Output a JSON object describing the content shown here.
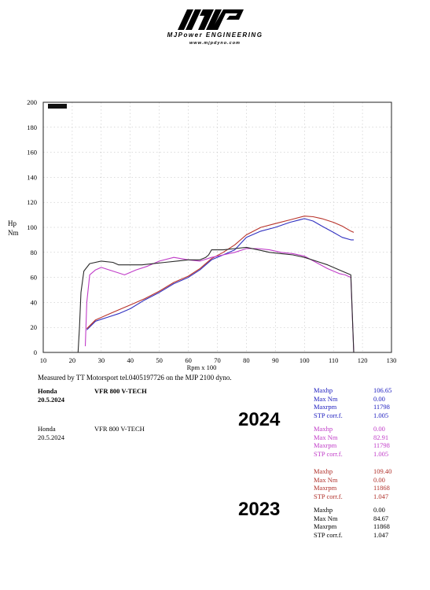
{
  "brand": {
    "name": "MJPower ENGINEERING",
    "url": "www.mjpdyno.com"
  },
  "chart_data": {
    "type": "line",
    "title": "",
    "xlabel": "Rpm x 100",
    "ylabel": "Hp\nNm",
    "ylabel_lines": [
      "Hp",
      "Nm"
    ],
    "xlim": [
      10,
      130
    ],
    "ylim": [
      0,
      200
    ],
    "x_ticks": [
      10,
      20,
      30,
      40,
      50,
      60,
      70,
      80,
      90,
      100,
      110,
      120,
      130
    ],
    "y_ticks": [
      0,
      20,
      40,
      60,
      80,
      100,
      120,
      140,
      160,
      180,
      200
    ],
    "grid": true,
    "series": [
      {
        "color": "#3030c0",
        "x": [
          25,
          28,
          32,
          36,
          40,
          45,
          50,
          55,
          60,
          64,
          66,
          68,
          72,
          76,
          80,
          85,
          90,
          95,
          100,
          103,
          106,
          110,
          113,
          116,
          117
        ],
        "y": [
          18,
          25,
          28,
          31,
          35,
          42,
          48,
          55,
          60,
          66,
          70,
          74,
          78,
          82,
          92,
          97,
          100,
          104,
          107,
          105,
          101,
          96,
          92,
          90,
          90
        ]
      },
      {
        "color": "#b8332a",
        "x": [
          25,
          28,
          32,
          36,
          40,
          45,
          50,
          55,
          60,
          64,
          66,
          68,
          72,
          76,
          80,
          85,
          90,
          95,
          100,
          103,
          106,
          110,
          113,
          116,
          117
        ],
        "y": [
          19,
          26,
          30,
          34,
          38,
          43,
          49,
          56,
          61,
          67,
          71,
          75,
          80,
          86,
          94,
          100,
          103,
          106,
          109,
          108.5,
          107,
          104,
          101,
          97,
          96
        ]
      },
      {
        "color": "#c03cc8",
        "x": [
          24.5,
          25,
          26,
          28,
          30,
          34,
          38,
          42,
          46,
          50,
          55,
          60,
          64,
          68,
          72,
          76,
          80,
          84,
          88,
          92,
          96,
          100,
          104,
          108,
          112,
          114,
          116,
          117
        ],
        "y": [
          5,
          40,
          62,
          66,
          68,
          65,
          62,
          66,
          69,
          73,
          76,
          74,
          73,
          76,
          78,
          80,
          83,
          83,
          82,
          80,
          79,
          77,
          72,
          67,
          63,
          62,
          60,
          0
        ]
      },
      {
        "color": "#2a2a2a",
        "x": [
          22,
          22.5,
          23,
          24,
          26,
          30,
          34,
          36,
          40,
          44,
          48,
          52,
          56,
          60,
          64,
          66,
          67,
          68,
          72,
          76,
          80,
          84,
          88,
          92,
          96,
          100,
          104,
          108,
          112,
          114,
          116,
          117
        ],
        "y": [
          0,
          20,
          48,
          65,
          71,
          73,
          72,
          70,
          70,
          70,
          71,
          72,
          73,
          74,
          74,
          76,
          78,
          82,
          82,
          83,
          84,
          82,
          80,
          79,
          78,
          76,
          73,
          70,
          66,
          64,
          62,
          0
        ]
      }
    ]
  },
  "caption": "Measured by TT Motorsport tel.0405197726 on the MJP 2100 dyno.",
  "runs": [
    {
      "make": "Honda",
      "date": "20.5.2024",
      "model": "VFR 800 V-TECH"
    },
    {
      "make": "Honda",
      "date": "20.5.2024",
      "model": "VFR 800 V-TECH"
    }
  ],
  "years": {
    "first": "2024",
    "second": "2023"
  },
  "stats": [
    {
      "color": "#2020c0",
      "rows": [
        [
          "Maxhp",
          "106.65"
        ],
        [
          "Max Nm",
          "0.00"
        ],
        [
          "Maxrpm",
          "11798"
        ],
        [
          "STP corr.f.",
          "1.005"
        ]
      ]
    },
    {
      "color": "#c03cc8",
      "rows": [
        [
          "Maxhp",
          "0.00"
        ],
        [
          "Max Nm",
          "82.91"
        ],
        [
          "Maxrpm",
          "11798"
        ],
        [
          "STP corr.f.",
          "1.005"
        ]
      ]
    },
    {
      "color": "#b0302a",
      "rows": [
        [
          "Maxhp",
          "109.40"
        ],
        [
          "Max Nm",
          "0.00"
        ],
        [
          "Maxrpm",
          "11868"
        ],
        [
          "STP corr.f.",
          "1.047"
        ]
      ]
    },
    {
      "color": "#000000",
      "rows": [
        [
          "Maxhp",
          "0.00"
        ],
        [
          "Max Nm",
          "84.67"
        ],
        [
          "Maxrpm",
          "11868"
        ],
        [
          "STP corr.f.",
          "1.047"
        ]
      ]
    }
  ]
}
